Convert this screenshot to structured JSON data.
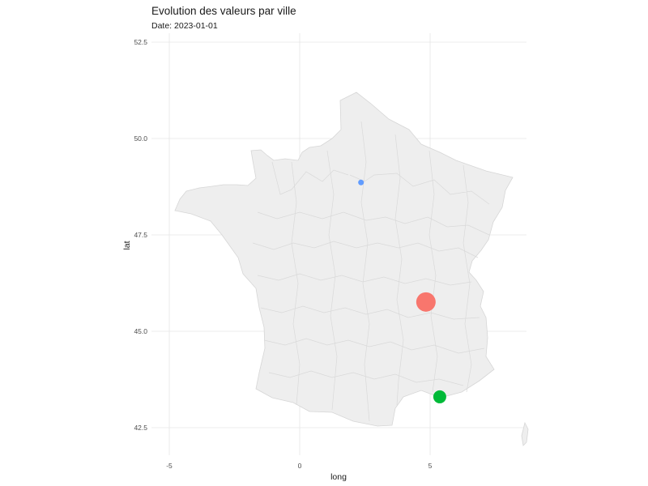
{
  "chart_data": {
    "type": "scatter",
    "title": "Evolution des valeurs par ville",
    "subtitle": "Date: 2023-01-01",
    "xlabel": "long",
    "ylabel": "lat",
    "xlim": [
      -5.7,
      8.7
    ],
    "ylim": [
      41.7,
      52.5
    ],
    "x_ticks": [
      {
        "value": -5,
        "label": "-5"
      },
      {
        "value": 0,
        "label": "0"
      },
      {
        "value": 5,
        "label": "5"
      }
    ],
    "y_ticks": [
      {
        "value": 42.5,
        "label": "42.5"
      },
      {
        "value": 45.0,
        "label": "45.0"
      },
      {
        "value": 47.5,
        "label": "47.5"
      },
      {
        "value": 50.0,
        "label": "50.0"
      },
      {
        "value": 52.5,
        "label": "52.5"
      }
    ],
    "grid": true,
    "basemap": "France departments",
    "points": [
      {
        "long": 2.35,
        "lat": 48.86,
        "size": "small",
        "color": "#619CFF"
      },
      {
        "long": 4.84,
        "lat": 45.76,
        "size": "large",
        "color": "#F8766D"
      },
      {
        "long": 5.37,
        "lat": 43.3,
        "size": "medium",
        "color": "#00BA38"
      }
    ]
  }
}
